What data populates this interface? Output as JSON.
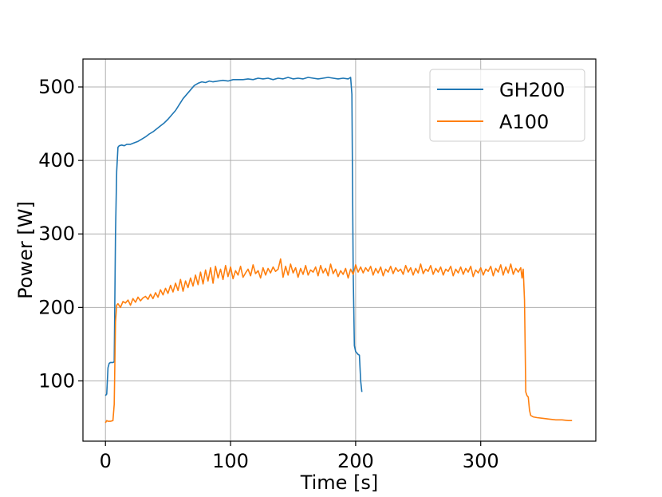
{
  "chart_data": {
    "type": "line",
    "xlabel": "Time [s]",
    "ylabel": "Power [W]",
    "xlim": [
      -18,
      392
    ],
    "ylim": [
      18,
      538
    ],
    "xticks": [
      0,
      100,
      200,
      300
    ],
    "yticks": [
      100,
      200,
      300,
      400,
      500
    ],
    "grid": true,
    "legend": "top-right",
    "series": [
      {
        "name": "GH200",
        "color": "#1f77b4",
        "points": [
          [
            0,
            80
          ],
          [
            1,
            82
          ],
          [
            2,
            118
          ],
          [
            3,
            124
          ],
          [
            4,
            125
          ],
          [
            5,
            125
          ],
          [
            6,
            125
          ],
          [
            7,
            126
          ],
          [
            8,
            300
          ],
          [
            9,
            385
          ],
          [
            10,
            418
          ],
          [
            11,
            420
          ],
          [
            13,
            421
          ],
          [
            15,
            420
          ],
          [
            17,
            422
          ],
          [
            20,
            422
          ],
          [
            23,
            424
          ],
          [
            26,
            426
          ],
          [
            29,
            429
          ],
          [
            32,
            432
          ],
          [
            35,
            436
          ],
          [
            38,
            439
          ],
          [
            41,
            443
          ],
          [
            44,
            447
          ],
          [
            47,
            451
          ],
          [
            50,
            456
          ],
          [
            53,
            462
          ],
          [
            56,
            468
          ],
          [
            59,
            476
          ],
          [
            62,
            484
          ],
          [
            65,
            490
          ],
          [
            68,
            496
          ],
          [
            71,
            502
          ],
          [
            74,
            505
          ],
          [
            77,
            507
          ],
          [
            80,
            506
          ],
          [
            83,
            508
          ],
          [
            86,
            507
          ],
          [
            90,
            508
          ],
          [
            94,
            509
          ],
          [
            98,
            508
          ],
          [
            102,
            510
          ],
          [
            106,
            510
          ],
          [
            110,
            510
          ],
          [
            114,
            511
          ],
          [
            118,
            510
          ],
          [
            122,
            512
          ],
          [
            126,
            511
          ],
          [
            130,
            512
          ],
          [
            134,
            510
          ],
          [
            138,
            512
          ],
          [
            142,
            511
          ],
          [
            146,
            513
          ],
          [
            150,
            511
          ],
          [
            154,
            512
          ],
          [
            158,
            511
          ],
          [
            162,
            513
          ],
          [
            166,
            512
          ],
          [
            170,
            511
          ],
          [
            174,
            512
          ],
          [
            178,
            513
          ],
          [
            182,
            512
          ],
          [
            186,
            511
          ],
          [
            190,
            512
          ],
          [
            194,
            511
          ],
          [
            196,
            513
          ],
          [
            197,
            490
          ],
          [
            198,
            250
          ],
          [
            199,
            148
          ],
          [
            200,
            140
          ],
          [
            202,
            136
          ],
          [
            203,
            135
          ],
          [
            204,
            100
          ],
          [
            205,
            85
          ]
        ]
      },
      {
        "name": "A100",
        "color": "#ff7f0e",
        "points": [
          [
            0,
            43
          ],
          [
            1,
            46
          ],
          [
            2,
            45
          ],
          [
            4,
            45
          ],
          [
            6,
            46
          ],
          [
            7,
            68
          ],
          [
            8,
            180
          ],
          [
            9,
            203
          ],
          [
            10,
            205
          ],
          [
            12,
            200
          ],
          [
            14,
            208
          ],
          [
            16,
            206
          ],
          [
            18,
            210
          ],
          [
            20,
            203
          ],
          [
            22,
            212
          ],
          [
            24,
            207
          ],
          [
            26,
            214
          ],
          [
            28,
            209
          ],
          [
            30,
            213
          ],
          [
            32,
            215
          ],
          [
            34,
            211
          ],
          [
            36,
            218
          ],
          [
            38,
            212
          ],
          [
            40,
            220
          ],
          [
            42,
            214
          ],
          [
            44,
            224
          ],
          [
            46,
            217
          ],
          [
            48,
            226
          ],
          [
            50,
            219
          ],
          [
            52,
            230
          ],
          [
            54,
            221
          ],
          [
            56,
            233
          ],
          [
            58,
            223
          ],
          [
            60,
            238
          ],
          [
            62,
            222
          ],
          [
            64,
            236
          ],
          [
            66,
            227
          ],
          [
            68,
            240
          ],
          [
            70,
            229
          ],
          [
            72,
            244
          ],
          [
            74,
            231
          ],
          [
            76,
            248
          ],
          [
            78,
            232
          ],
          [
            80,
            251
          ],
          [
            82,
            236
          ],
          [
            84,
            254
          ],
          [
            86,
            233
          ],
          [
            88,
            256
          ],
          [
            90,
            240
          ],
          [
            92,
            252
          ],
          [
            94,
            238
          ],
          [
            96,
            257
          ],
          [
            98,
            242
          ],
          [
            100,
            255
          ],
          [
            102,
            239
          ],
          [
            104,
            250
          ],
          [
            106,
            244
          ],
          [
            108,
            256
          ],
          [
            110,
            241
          ],
          [
            112,
            247
          ],
          [
            114,
            252
          ],
          [
            116,
            243
          ],
          [
            118,
            258
          ],
          [
            120,
            246
          ],
          [
            122,
            250
          ],
          [
            124,
            240
          ],
          [
            126,
            254
          ],
          [
            128,
            244
          ],
          [
            130,
            253
          ],
          [
            132,
            247
          ],
          [
            134,
            255
          ],
          [
            136,
            249
          ],
          [
            138,
            252
          ],
          [
            140,
            266
          ],
          [
            142,
            241
          ],
          [
            144,
            256
          ],
          [
            146,
            244
          ],
          [
            148,
            259
          ],
          [
            150,
            247
          ],
          [
            152,
            254
          ],
          [
            154,
            241
          ],
          [
            156,
            253
          ],
          [
            158,
            245
          ],
          [
            160,
            257
          ],
          [
            162,
            244
          ],
          [
            164,
            251
          ],
          [
            166,
            248
          ],
          [
            168,
            255
          ],
          [
            170,
            243
          ],
          [
            172,
            257
          ],
          [
            174,
            247
          ],
          [
            176,
            253
          ],
          [
            178,
            243
          ],
          [
            180,
            259
          ],
          [
            182,
            246
          ],
          [
            184,
            252
          ],
          [
            186,
            242
          ],
          [
            188,
            250
          ],
          [
            190,
            245
          ],
          [
            192,
            253
          ],
          [
            194,
            240
          ],
          [
            196,
            252
          ],
          [
            198,
            245
          ],
          [
            200,
            258
          ],
          [
            202,
            248
          ],
          [
            204,
            255
          ],
          [
            206,
            247
          ],
          [
            208,
            254
          ],
          [
            210,
            249
          ],
          [
            212,
            256
          ],
          [
            214,
            244
          ],
          [
            216,
            253
          ],
          [
            218,
            247
          ],
          [
            220,
            255
          ],
          [
            222,
            243
          ],
          [
            224,
            252
          ],
          [
            226,
            248
          ],
          [
            228,
            256
          ],
          [
            230,
            246
          ],
          [
            232,
            254
          ],
          [
            234,
            249
          ],
          [
            236,
            252
          ],
          [
            238,
            245
          ],
          [
            240,
            257
          ],
          [
            242,
            248
          ],
          [
            244,
            254
          ],
          [
            246,
            244
          ],
          [
            248,
            253
          ],
          [
            250,
            247
          ],
          [
            252,
            259
          ],
          [
            254,
            246
          ],
          [
            256,
            252
          ],
          [
            258,
            249
          ],
          [
            260,
            257
          ],
          [
            262,
            245
          ],
          [
            264,
            253
          ],
          [
            266,
            248
          ],
          [
            268,
            255
          ],
          [
            270,
            244
          ],
          [
            272,
            252
          ],
          [
            274,
            249
          ],
          [
            276,
            256
          ],
          [
            278,
            243
          ],
          [
            280,
            252
          ],
          [
            282,
            247
          ],
          [
            284,
            255
          ],
          [
            286,
            245
          ],
          [
            288,
            253
          ],
          [
            290,
            248
          ],
          [
            292,
            256
          ],
          [
            294,
            242
          ],
          [
            296,
            251
          ],
          [
            298,
            247
          ],
          [
            300,
            254
          ],
          [
            302,
            244
          ],
          [
            304,
            252
          ],
          [
            306,
            249
          ],
          [
            308,
            256
          ],
          [
            310,
            243
          ],
          [
            312,
            253
          ],
          [
            314,
            248
          ],
          [
            316,
            258
          ],
          [
            318,
            244
          ],
          [
            320,
            255
          ],
          [
            322,
            247
          ],
          [
            324,
            259
          ],
          [
            326,
            245
          ],
          [
            328,
            253
          ],
          [
            330,
            248
          ],
          [
            332,
            254
          ],
          [
            333,
            240
          ],
          [
            334,
            252
          ],
          [
            335,
            210
          ],
          [
            336,
            85
          ],
          [
            337,
            80
          ],
          [
            338,
            78
          ],
          [
            339,
            60
          ],
          [
            340,
            53
          ],
          [
            342,
            51
          ],
          [
            345,
            50
          ],
          [
            350,
            49
          ],
          [
            355,
            48
          ],
          [
            360,
            47
          ],
          [
            365,
            47
          ],
          [
            370,
            46
          ],
          [
            373,
            46
          ]
        ]
      }
    ]
  }
}
